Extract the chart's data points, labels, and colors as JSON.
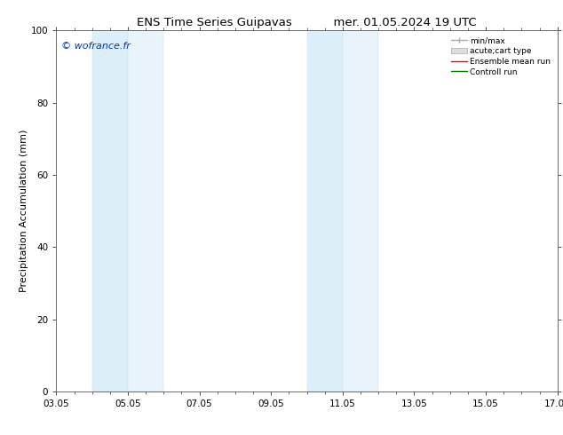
{
  "title_left": "ENS Time Series Guipavas",
  "title_right": "mer. 01.05.2024 19 UTC",
  "ylabel": "Precipitation Accumulation (mm)",
  "ylim": [
    0,
    100
  ],
  "yticks": [
    0,
    20,
    40,
    60,
    80,
    100
  ],
  "xtick_labels": [
    "03.05",
    "05.05",
    "07.05",
    "09.05",
    "11.05",
    "13.05",
    "15.05",
    "17.05"
  ],
  "xtick_positions": [
    0,
    2,
    4,
    6,
    8,
    10,
    12,
    14
  ],
  "xlim": [
    0,
    14
  ],
  "shaded_bands": [
    {
      "x_start": 1.0,
      "x_end": 2.0,
      "color": "#dceef8"
    },
    {
      "x_start": 2.0,
      "x_end": 3.0,
      "color": "#e8f3fb"
    },
    {
      "x_start": 7.0,
      "x_end": 8.0,
      "color": "#dceef8"
    },
    {
      "x_start": 8.0,
      "x_end": 9.0,
      "color": "#e8f3fb"
    }
  ],
  "shaded_edge_color": "#c5dff0",
  "background_color": "#ffffff",
  "watermark_text": "© wofrance.fr",
  "watermark_color": "#0033cc",
  "watermark_fontsize": 8,
  "title_fontsize": 9.5,
  "axis_fontsize": 7.5,
  "ylabel_fontsize": 8
}
